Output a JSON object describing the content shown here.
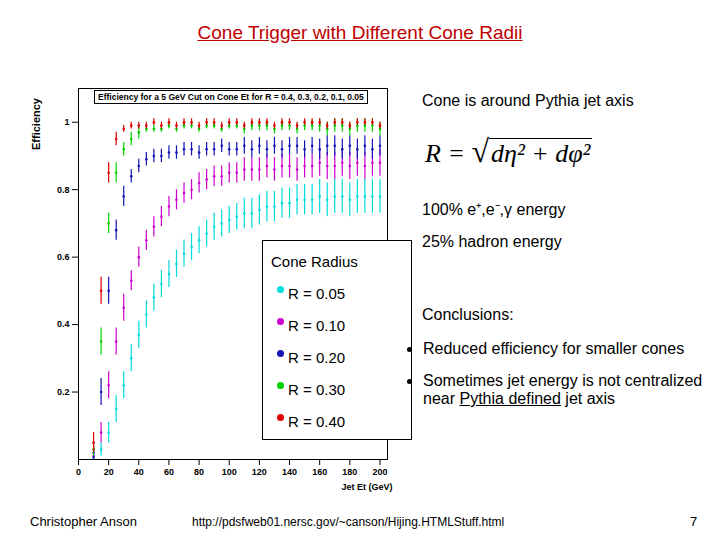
{
  "slide": {
    "title": "Cone Trigger with Different Cone Radii",
    "text_lines": [
      "Cone is around Pythia jet axis",
      "100% e⁺,e⁻,γ energy",
      "25% hadron energy"
    ],
    "formula": {
      "lhs": "R =",
      "radical": "√",
      "radicand": "dη² + dφ²"
    },
    "conclusions_heading": "Conclusions:",
    "conclusions": [
      {
        "text": "Reduced efficiency for smaller cones"
      },
      {
        "text": "Sometimes jet energy is not centralized near Pythia defined jet axis",
        "underlined": "Pythia defined"
      }
    ],
    "footer": {
      "author": "Christopher Anson",
      "url": "http://pdsfweb01.nersc.gov/~canson/Hijing.HTMLStuff.html",
      "page": "7"
    }
  },
  "chart_data": {
    "type": "scatter",
    "title": "Efficiency for a 5 GeV Cut on Cone Et for R = 0.4, 0.3, 0.2, 0.1, 0.05",
    "x_label": "Jet Et (GeV)",
    "y_label": "Efficiency",
    "legend_title": "Cone Radius",
    "legend": "lower right",
    "grid": false,
    "marker": "errorbar",
    "xlim": [
      0,
      205
    ],
    "xticks": [
      0,
      20,
      40,
      60,
      80,
      100,
      120,
      140,
      160,
      180,
      200
    ],
    "ylim": [
      0,
      1.1
    ],
    "yticks": [
      0.2,
      0.4,
      0.6,
      0.8,
      1
    ],
    "x": [
      10,
      15,
      20,
      25,
      30,
      35,
      40,
      45,
      50,
      55,
      60,
      65,
      70,
      75,
      80,
      85,
      90,
      95,
      100,
      105,
      110,
      115,
      120,
      125,
      130,
      135,
      140,
      145,
      150,
      155,
      160,
      165,
      170,
      175,
      180,
      185,
      190,
      195,
      200
    ],
    "series": [
      {
        "name": "R = 0.05",
        "color": "#00dcdc",
        "values": [
          0.005,
          0.03,
          0.08,
          0.15,
          0.22,
          0.3,
          0.37,
          0.43,
          0.48,
          0.52,
          0.55,
          0.58,
          0.61,
          0.63,
          0.65,
          0.67,
          0.69,
          0.7,
          0.71,
          0.72,
          0.73,
          0.73,
          0.74,
          0.75,
          0.75,
          0.76,
          0.76,
          0.77,
          0.77,
          0.77,
          0.78,
          0.77,
          0.78,
          0.78,
          0.77,
          0.78,
          0.78,
          0.78,
          0.78
        ],
        "errors": [
          0.01,
          0.02,
          0.03,
          0.04,
          0.04,
          0.04,
          0.04,
          0.04,
          0.04,
          0.04,
          0.04,
          0.04,
          0.04,
          0.04,
          0.04,
          0.04,
          0.04,
          0.04,
          0.04,
          0.04,
          0.045,
          0.045,
          0.045,
          0.045,
          0.045,
          0.045,
          0.045,
          0.045,
          0.045,
          0.045,
          0.05,
          0.05,
          0.05,
          0.05,
          0.05,
          0.05,
          0.05,
          0.05,
          0.05
        ]
      },
      {
        "name": "R = 0.10",
        "color": "#cc00cc",
        "values": [
          0.01,
          0.08,
          0.22,
          0.35,
          0.45,
          0.53,
          0.6,
          0.65,
          0.69,
          0.72,
          0.75,
          0.77,
          0.79,
          0.8,
          0.82,
          0.83,
          0.84,
          0.84,
          0.85,
          0.85,
          0.86,
          0.86,
          0.86,
          0.87,
          0.86,
          0.87,
          0.87,
          0.86,
          0.87,
          0.87,
          0.88,
          0.87,
          0.87,
          0.88,
          0.87,
          0.88,
          0.87,
          0.88,
          0.88
        ],
        "errors": [
          0.01,
          0.03,
          0.04,
          0.04,
          0.04,
          0.03,
          0.03,
          0.03,
          0.03,
          0.03,
          0.03,
          0.03,
          0.03,
          0.03,
          0.03,
          0.03,
          0.03,
          0.03,
          0.03,
          0.03,
          0.035,
          0.035,
          0.035,
          0.035,
          0.035,
          0.035,
          0.035,
          0.035,
          0.035,
          0.035,
          0.04,
          0.04,
          0.04,
          0.04,
          0.04,
          0.04,
          0.04,
          0.04,
          0.04
        ]
      },
      {
        "name": "R = 0.20",
        "color": "#1414b4",
        "values": [
          0.02,
          0.2,
          0.5,
          0.68,
          0.78,
          0.84,
          0.87,
          0.89,
          0.9,
          0.9,
          0.91,
          0.91,
          0.92,
          0.92,
          0.91,
          0.92,
          0.92,
          0.93,
          0.92,
          0.92,
          0.93,
          0.92,
          0.93,
          0.92,
          0.93,
          0.92,
          0.93,
          0.93,
          0.92,
          0.93,
          0.92,
          0.93,
          0.93,
          0.92,
          0.93,
          0.92,
          0.93,
          0.92,
          0.93
        ],
        "errors": [
          0.02,
          0.04,
          0.04,
          0.03,
          0.03,
          0.02,
          0.02,
          0.02,
          0.02,
          0.02,
          0.02,
          0.02,
          0.02,
          0.02,
          0.02,
          0.02,
          0.02,
          0.02,
          0.02,
          0.02,
          0.025,
          0.025,
          0.025,
          0.025,
          0.025,
          0.025,
          0.025,
          0.025,
          0.025,
          0.025,
          0.03,
          0.03,
          0.03,
          0.03,
          0.03,
          0.03,
          0.03,
          0.03,
          0.03
        ]
      },
      {
        "name": "R = 0.30",
        "color": "#00d200",
        "values": [
          0.03,
          0.35,
          0.7,
          0.85,
          0.92,
          0.95,
          0.97,
          0.98,
          0.98,
          0.98,
          0.99,
          0.98,
          0.99,
          0.99,
          0.98,
          0.99,
          0.99,
          0.98,
          0.99,
          0.99,
          0.98,
          0.99,
          0.99,
          0.99,
          0.98,
          0.99,
          0.99,
          0.98,
          0.99,
          0.99,
          0.99,
          0.98,
          0.99,
          0.99,
          0.98,
          0.99,
          0.99,
          0.99,
          0.98
        ],
        "errors": [
          0.02,
          0.04,
          0.03,
          0.03,
          0.02,
          0.02,
          0.02,
          0.01,
          0.01,
          0.01,
          0.01,
          0.01,
          0.01,
          0.01,
          0.01,
          0.01,
          0.01,
          0.01,
          0.01,
          0.01,
          0.015,
          0.015,
          0.015,
          0.015,
          0.015,
          0.015,
          0.015,
          0.015,
          0.015,
          0.015,
          0.02,
          0.02,
          0.02,
          0.02,
          0.02,
          0.02,
          0.02,
          0.02,
          0.02
        ]
      },
      {
        "name": "R = 0.40",
        "color": "#dc0000",
        "values": [
          0.05,
          0.5,
          0.85,
          0.95,
          0.98,
          0.99,
          0.99,
          0.99,
          1,
          0.99,
          1,
          0.99,
          1,
          1,
          0.99,
          1,
          1,
          0.99,
          1,
          1,
          0.99,
          1,
          1,
          1,
          0.99,
          1,
          1,
          0.99,
          1,
          1,
          1,
          0.99,
          1,
          1,
          0.99,
          1,
          1,
          1,
          0.99
        ],
        "errors": [
          0.03,
          0.04,
          0.03,
          0.02,
          0.01,
          0.01,
          0.01,
          0.01,
          0.01,
          0.01,
          0.01,
          0.01,
          0.01,
          0.01,
          0.01,
          0.01,
          0.01,
          0.01,
          0.01,
          0.01,
          0.01,
          0.01,
          0.01,
          0.01,
          0.01,
          0.01,
          0.01,
          0.01,
          0.01,
          0.01,
          0.01,
          0.01,
          0.01,
          0.01,
          0.01,
          0.01,
          0.01,
          0.01,
          0.01
        ]
      }
    ]
  }
}
